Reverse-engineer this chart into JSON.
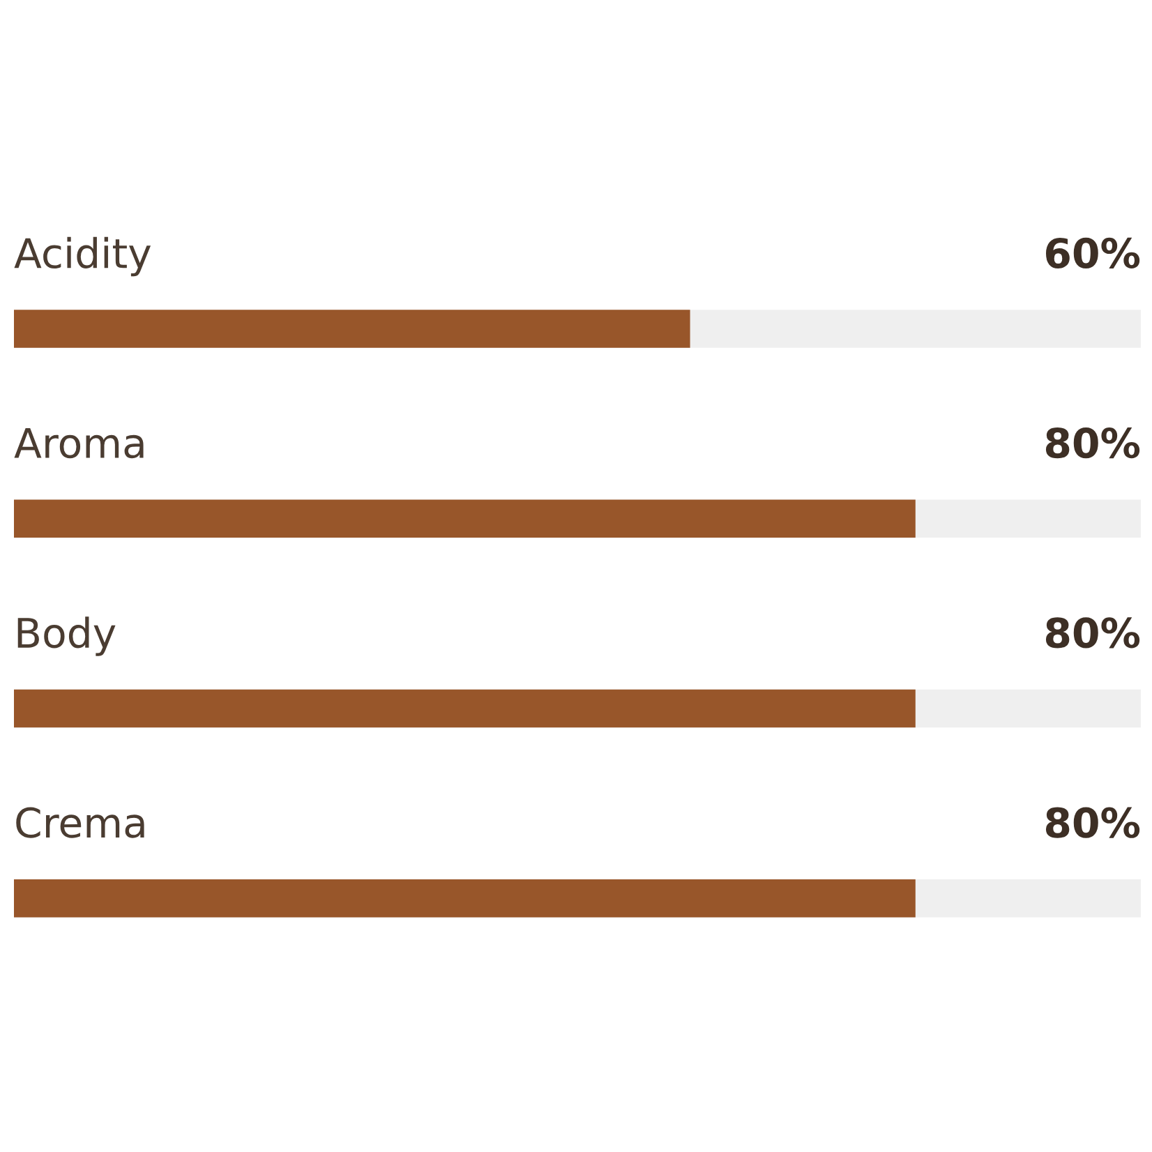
{
  "chart_data": {
    "type": "bar",
    "orientation": "horizontal",
    "categories": [
      "Acidity",
      "Aroma",
      "Body",
      "Crema"
    ],
    "values": [
      60,
      80,
      80,
      80
    ],
    "value_labels": [
      "60%",
      "80%",
      "80%",
      "80%"
    ],
    "color": "#98562a",
    "xlim": [
      0,
      100
    ]
  }
}
